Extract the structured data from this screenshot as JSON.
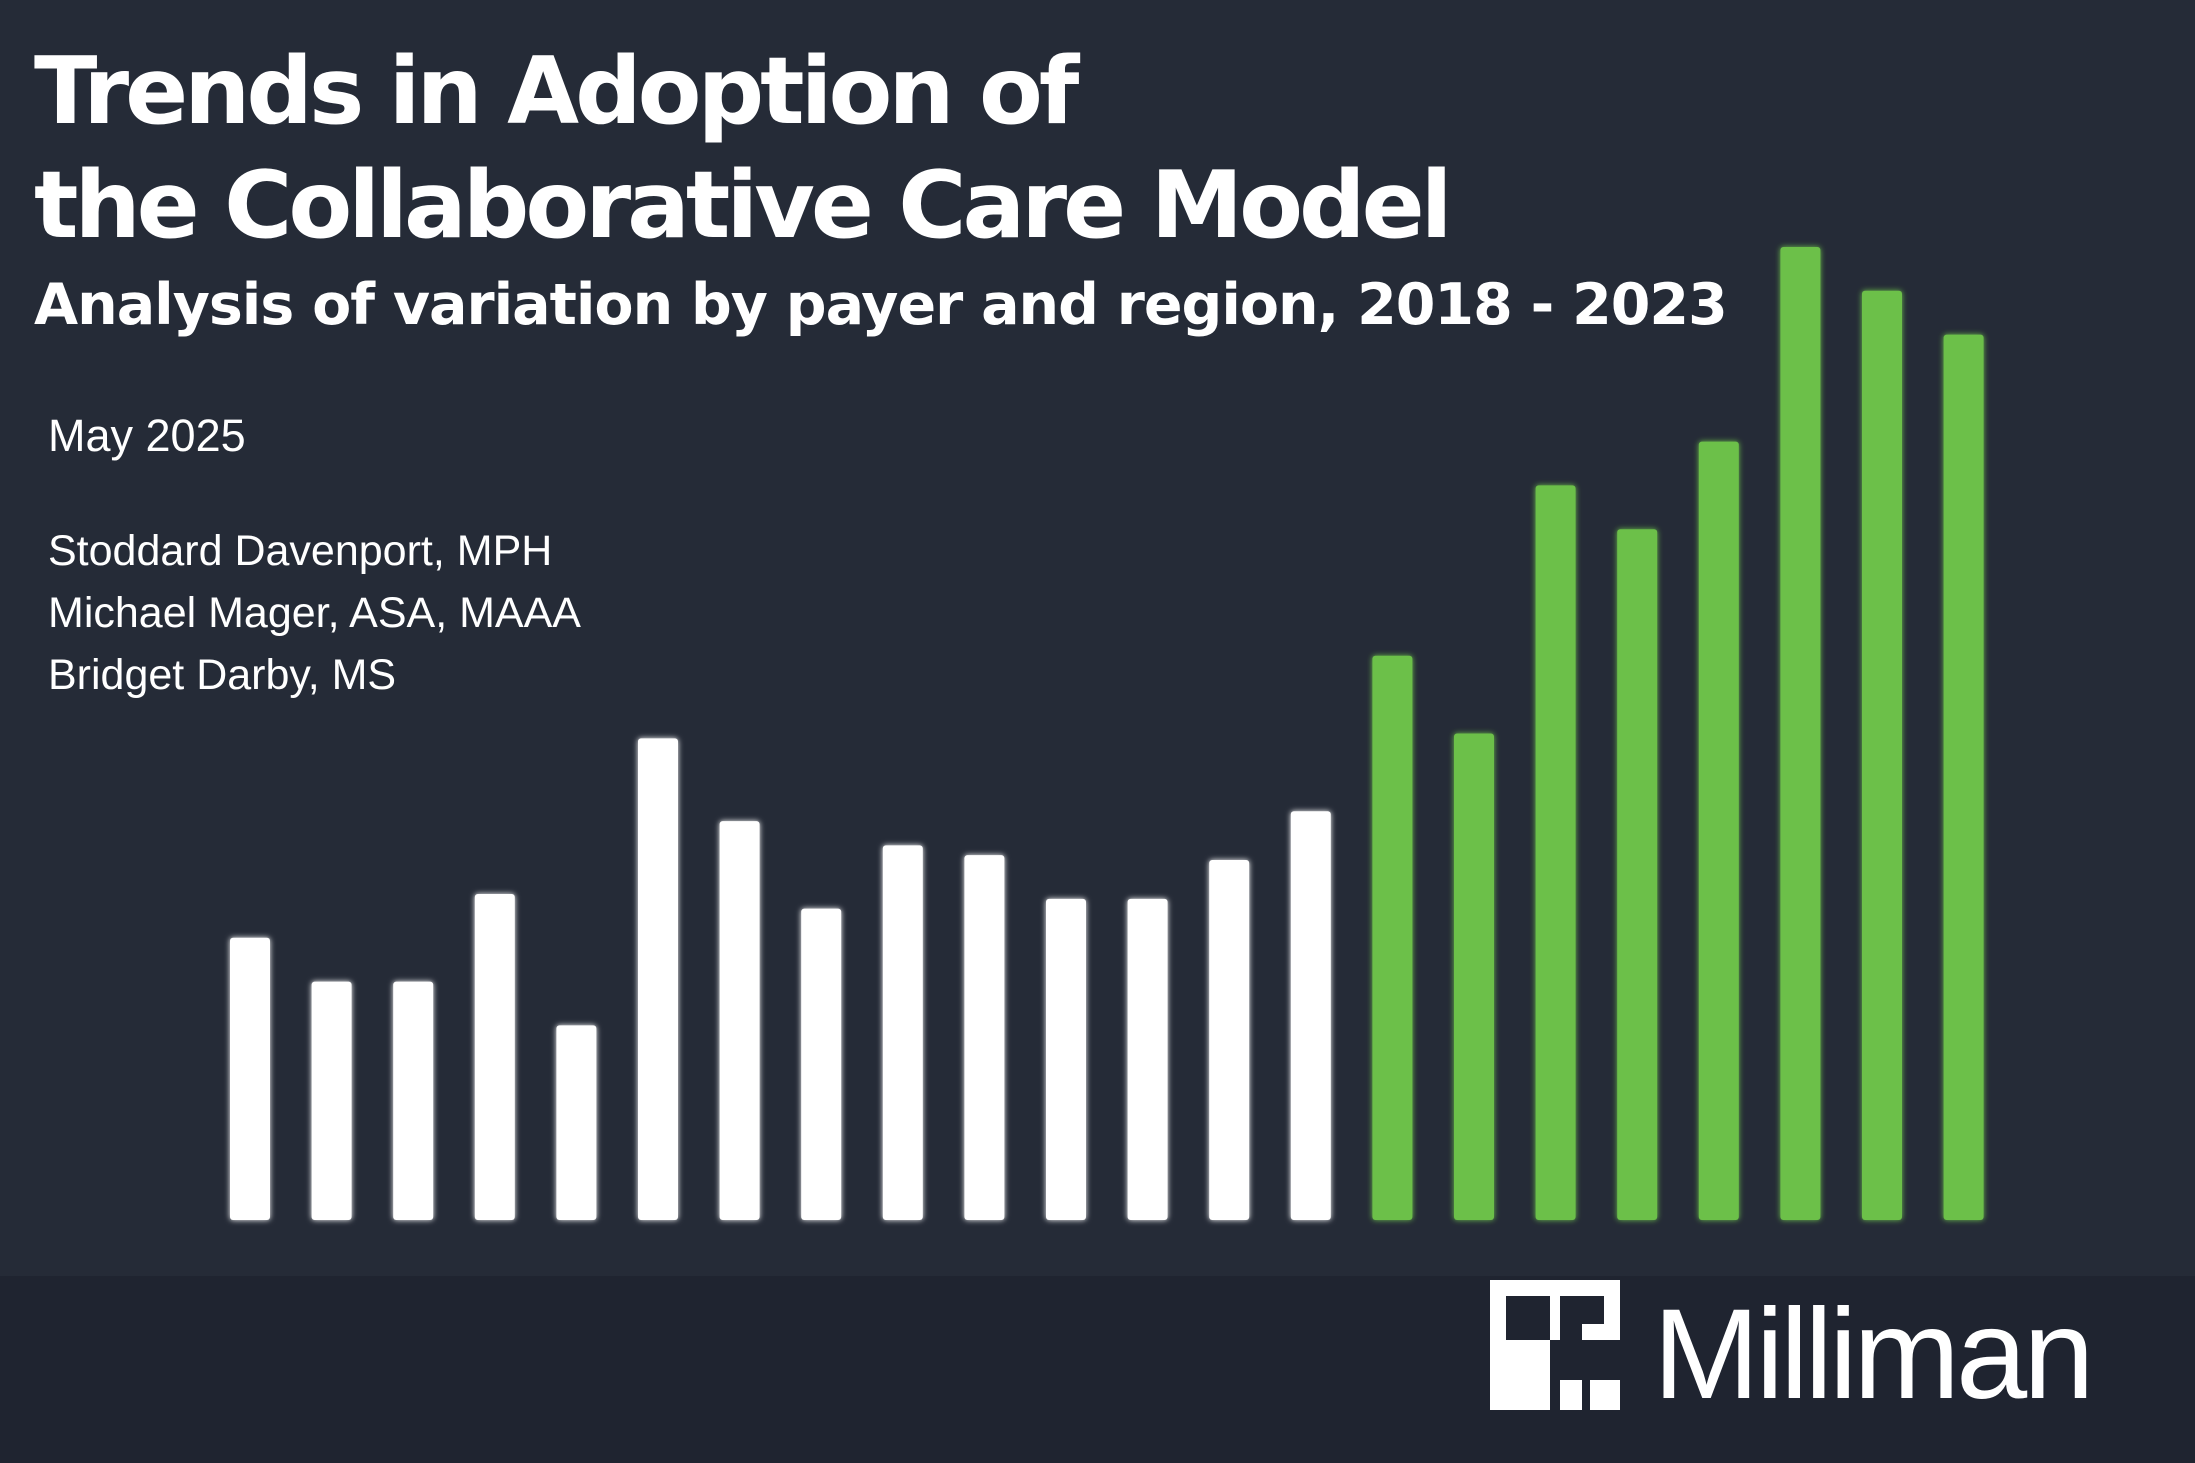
{
  "cover": {
    "title_line1": "Trends in Adoption of",
    "title_line2": "the Collaborative Care Model",
    "subtitle": "Analysis of variation by payer and region, 2018 - 2023",
    "date": "May 2025",
    "authors": [
      "Stoddard Davenport, MPH",
      "Michael Mager, ASA, MAAA",
      "Bridget Darby, MS"
    ]
  },
  "brand": {
    "name": "Milliman",
    "logo_mark": "milliman-square-icon"
  },
  "colors": {
    "background": "#252b37",
    "footer": "#1f2430",
    "bar_white": "#ffffff",
    "bar_green": "#6cc04a",
    "text": "#ffffff"
  },
  "chart_data": {
    "type": "bar",
    "title": "",
    "xlabel": "",
    "ylabel": "",
    "axes_visible": false,
    "ylim": [
      0,
      100
    ],
    "values": [
      29,
      24.5,
      24.5,
      33.5,
      20,
      49.5,
      41,
      32,
      38.5,
      37.5,
      33,
      33,
      37,
      42,
      58,
      50,
      75.5,
      71,
      80,
      100,
      95.5,
      91
    ],
    "highlight": [
      false,
      false,
      false,
      false,
      false,
      false,
      false,
      false,
      false,
      false,
      false,
      false,
      false,
      false,
      true,
      true,
      true,
      true,
      true,
      true,
      true,
      true
    ]
  }
}
